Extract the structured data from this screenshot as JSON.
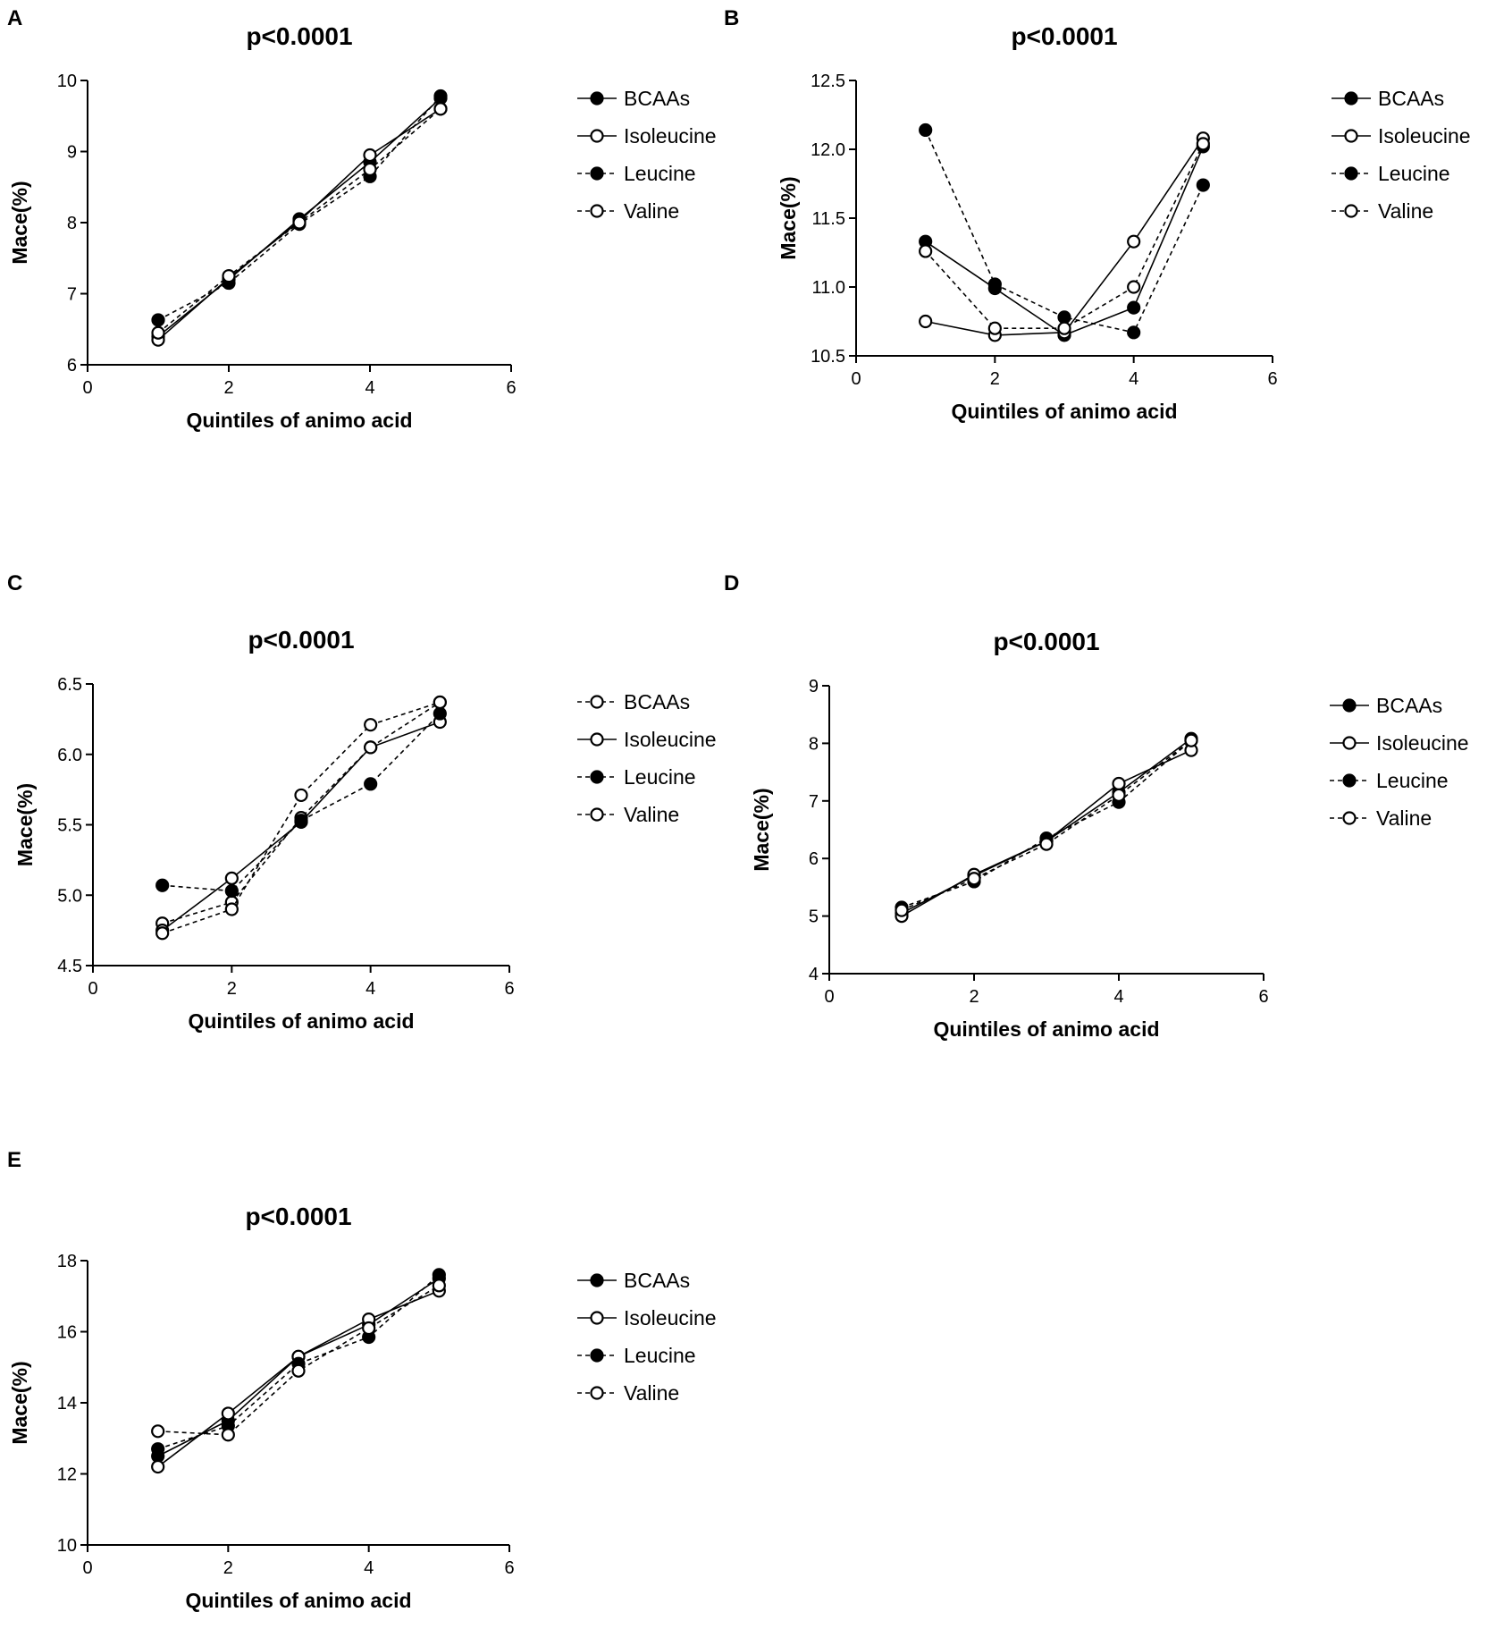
{
  "chart_data": [
    {
      "type": "line",
      "panel_label": "A",
      "title": "p<0.0001",
      "xlabel": "Quintiles of animo acid",
      "ylabel": "Mace(%)",
      "xlim": [
        0,
        6
      ],
      "ylim": [
        6,
        10
      ],
      "xticks": [
        "0",
        "2",
        "4",
        "6"
      ],
      "yticks": [
        "6",
        "7",
        "8",
        "9",
        "10"
      ],
      "x": [
        1,
        2,
        3,
        4,
        5
      ],
      "legend_position": "right",
      "series": [
        {
          "name": "BCAAs",
          "marker": "filled",
          "line": "solid",
          "values": [
            6.4,
            7.2,
            8.05,
            8.85,
            9.75
          ]
        },
        {
          "name": "Isoleucine",
          "marker": "open",
          "line": "solid",
          "values": [
            6.35,
            7.22,
            8.02,
            8.95,
            9.6
          ]
        },
        {
          "name": "Leucine",
          "marker": "filled",
          "line": "dashed",
          "values": [
            6.63,
            7.15,
            7.98,
            8.65,
            9.78
          ]
        },
        {
          "name": "Valine",
          "marker": "open",
          "line": "dashed",
          "values": [
            6.45,
            7.25,
            8.0,
            8.75,
            9.6
          ]
        }
      ]
    },
    {
      "type": "line",
      "panel_label": "B",
      "title": "p<0.0001",
      "xlabel": "Quintiles of animo acid",
      "ylabel": "Mace(%)",
      "xlim": [
        0,
        6
      ],
      "ylim": [
        10.5,
        12.5
      ],
      "xticks": [
        "0",
        "2",
        "4",
        "6"
      ],
      "yticks": [
        "10.5",
        "11.0",
        "11.5",
        "12.0",
        "12.5"
      ],
      "x": [
        1,
        2,
        3,
        4,
        5
      ],
      "legend_position": "right",
      "series": [
        {
          "name": "BCAAs",
          "marker": "filled",
          "line": "solid",
          "values": [
            11.33,
            10.99,
            10.65,
            10.85,
            12.02
          ]
        },
        {
          "name": "Isoleucine",
          "marker": "open",
          "line": "solid",
          "values": [
            10.75,
            10.65,
            10.67,
            11.33,
            12.08
          ]
        },
        {
          "name": "Leucine",
          "marker": "filled",
          "line": "dashed",
          "values": [
            12.14,
            11.02,
            10.78,
            10.67,
            11.74
          ]
        },
        {
          "name": "Valine",
          "marker": "open",
          "line": "dashed",
          "values": [
            11.26,
            10.7,
            10.7,
            11.0,
            12.04
          ]
        }
      ]
    },
    {
      "type": "line",
      "panel_label": "C",
      "title": "p<0.0001",
      "xlabel": "Quintiles of animo acid",
      "ylabel": "Mace(%)",
      "xlim": [
        0,
        6
      ],
      "ylim": [
        4.5,
        6.5
      ],
      "xticks": [
        "0",
        "2",
        "4",
        "6"
      ],
      "yticks": [
        "4.5",
        "5.0",
        "5.5",
        "6.0",
        "6.5"
      ],
      "x": [
        1,
        2,
        3,
        4,
        5
      ],
      "legend_position": "right",
      "series": [
        {
          "name": "BCAAs",
          "marker": "open",
          "line": "dashed",
          "values": [
            4.8,
            4.95,
            5.55,
            6.05,
            6.37
          ]
        },
        {
          "name": "Isoleucine",
          "marker": "open",
          "line": "solid",
          "values": [
            4.75,
            5.12,
            5.52,
            6.05,
            6.23
          ]
        },
        {
          "name": "Leucine",
          "marker": "filled",
          "line": "dashed",
          "values": [
            5.07,
            5.03,
            5.53,
            5.79,
            6.29
          ]
        },
        {
          "name": "Valine",
          "marker": "open",
          "line": "dashed",
          "values": [
            4.73,
            4.9,
            5.71,
            6.21,
            6.37
          ]
        }
      ]
    },
    {
      "type": "line",
      "panel_label": "D",
      "title": "p<0.0001",
      "xlabel": "Quintiles of animo acid",
      "ylabel": "Mace(%)",
      "xlim": [
        0,
        6
      ],
      "ylim": [
        4,
        9
      ],
      "xticks": [
        "0",
        "2",
        "4",
        "6"
      ],
      "yticks": [
        "4",
        "5",
        "6",
        "7",
        "8",
        "9"
      ],
      "x": [
        1,
        2,
        3,
        4,
        5
      ],
      "legend_position": "right",
      "series": [
        {
          "name": "BCAAs",
          "marker": "filled",
          "line": "solid",
          "values": [
            5.05,
            5.7,
            6.3,
            7.15,
            8.08
          ]
        },
        {
          "name": "Isoleucine",
          "marker": "open",
          "line": "solid",
          "values": [
            5.0,
            5.72,
            6.3,
            7.3,
            7.88
          ]
        },
        {
          "name": "Leucine",
          "marker": "filled",
          "line": "dashed",
          "values": [
            5.15,
            5.6,
            6.35,
            6.98,
            8.05
          ]
        },
        {
          "name": "Valine",
          "marker": "open",
          "line": "dashed",
          "values": [
            5.1,
            5.65,
            6.25,
            7.1,
            8.05
          ]
        }
      ]
    },
    {
      "type": "line",
      "panel_label": "E",
      "title": "p<0.0001",
      "xlabel": "Quintiles of animo acid",
      "ylabel": "Mace(%)",
      "xlim": [
        0,
        6
      ],
      "ylim": [
        10,
        18
      ],
      "xticks": [
        "0",
        "2",
        "4",
        "6"
      ],
      "yticks": [
        "10",
        "12",
        "14",
        "16",
        "18"
      ],
      "x": [
        1,
        2,
        3,
        4,
        5
      ],
      "legend_position": "right",
      "series": [
        {
          "name": "BCAAs",
          "marker": "filled",
          "line": "solid",
          "values": [
            12.5,
            13.5,
            15.3,
            16.2,
            17.5
          ]
        },
        {
          "name": "Isoleucine",
          "marker": "open",
          "line": "solid",
          "values": [
            12.2,
            13.7,
            15.3,
            16.35,
            17.15
          ]
        },
        {
          "name": "Leucine",
          "marker": "filled",
          "line": "dashed",
          "values": [
            12.7,
            13.35,
            15.1,
            15.85,
            17.6
          ]
        },
        {
          "name": "Valine",
          "marker": "open",
          "line": "dashed",
          "values": [
            13.2,
            13.1,
            14.9,
            16.1,
            17.3
          ]
        }
      ]
    }
  ]
}
